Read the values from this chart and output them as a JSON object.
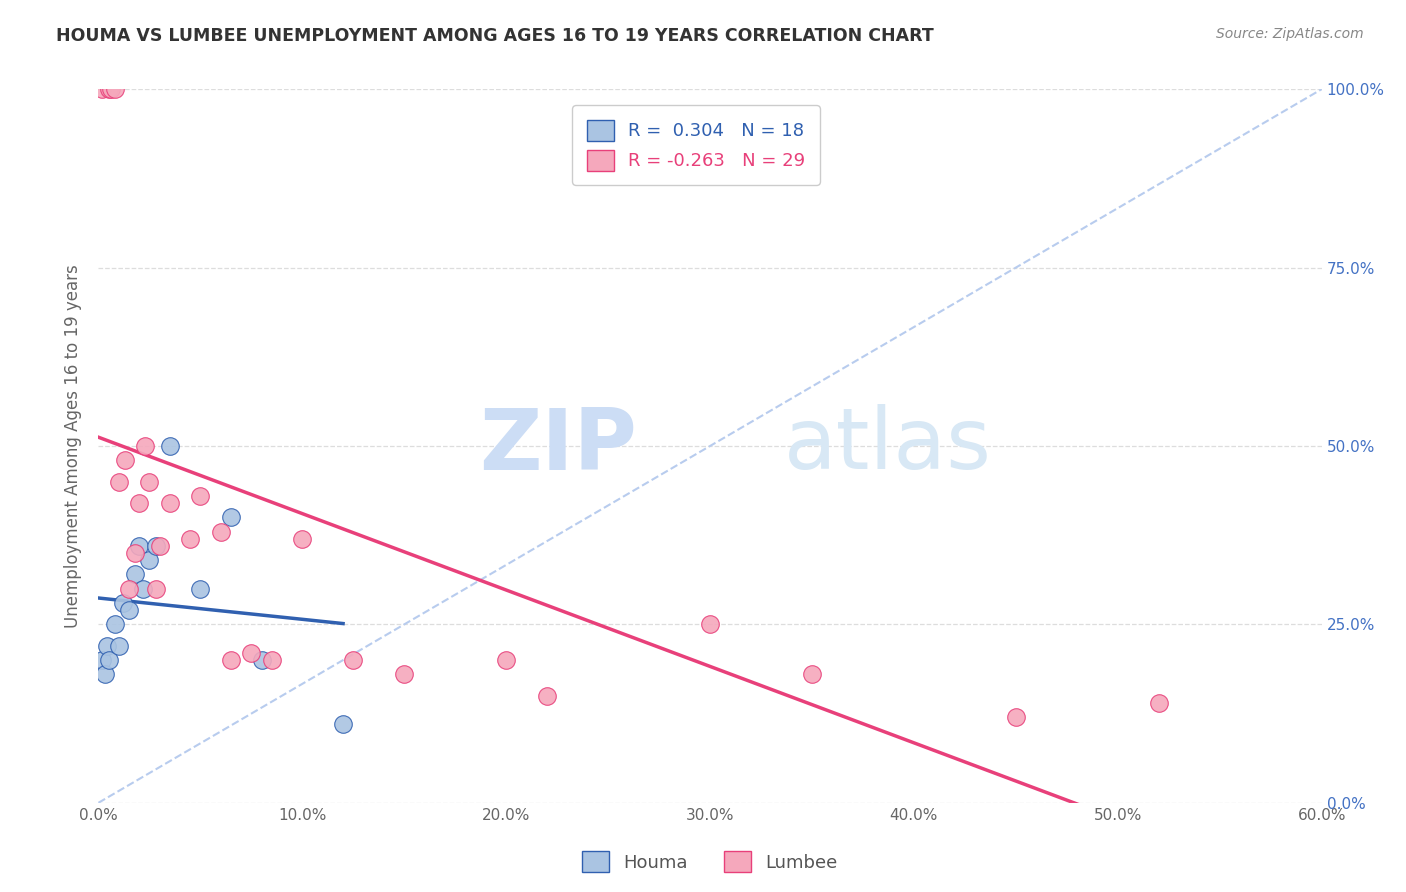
{
  "title": "HOUMA VS LUMBEE UNEMPLOYMENT AMONG AGES 16 TO 19 YEARS CORRELATION CHART",
  "source": "Source: ZipAtlas.com",
  "xlabel_vals": [
    0,
    10,
    20,
    30,
    40,
    50,
    60
  ],
  "ylabel_vals": [
    0,
    25,
    50,
    75,
    100
  ],
  "ylabel": "Unemployment Among Ages 16 to 19 years",
  "houma_r": 0.304,
  "houma_n": 18,
  "lumbee_r": -0.263,
  "lumbee_n": 29,
  "houma_color": "#aac4e2",
  "lumbee_color": "#f5a8bc",
  "houma_line_color": "#3060b0",
  "lumbee_line_color": "#e8407a",
  "ref_line_color": "#b8ccee",
  "houma_x": [
    0.2,
    0.3,
    0.4,
    0.5,
    0.8,
    1.0,
    1.2,
    1.5,
    1.8,
    2.0,
    2.2,
    2.5,
    2.8,
    3.5,
    5.0,
    6.5,
    8.0,
    12.0
  ],
  "houma_y": [
    20,
    18,
    22,
    20,
    25,
    22,
    28,
    27,
    32,
    36,
    30,
    34,
    36,
    50,
    30,
    40,
    20,
    11
  ],
  "lumbee_x": [
    0.2,
    0.5,
    0.6,
    0.8,
    1.0,
    1.3,
    1.5,
    1.8,
    2.0,
    2.3,
    2.5,
    2.8,
    3.0,
    3.5,
    4.5,
    5.0,
    6.0,
    6.5,
    7.5,
    8.5,
    10.0,
    12.5,
    15.0,
    20.0,
    22.0,
    30.0,
    35.0,
    45.0,
    52.0
  ],
  "lumbee_y": [
    100,
    100,
    100,
    100,
    45,
    48,
    30,
    35,
    42,
    50,
    45,
    30,
    36,
    42,
    37,
    43,
    38,
    20,
    21,
    20,
    37,
    20,
    18,
    20,
    15,
    25,
    18,
    12,
    14
  ],
  "watermark_zip": "ZIP",
  "watermark_atlas": "atlas",
  "watermark_color": "#ccddf5",
  "legend_houma_text": "Houma",
  "legend_lumbee_text": "Lumbee"
}
